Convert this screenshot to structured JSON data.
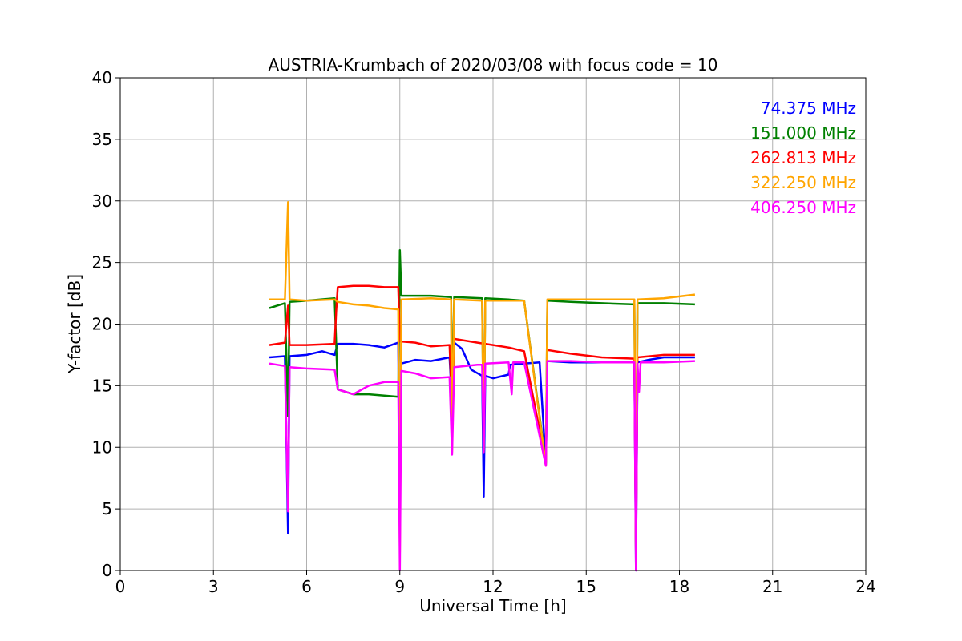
{
  "chart_data": {
    "type": "line",
    "title": "AUSTRIA-Krumbach of 2020/03/08 with focus code = 10",
    "xlabel": "Universal Time [h]",
    "ylabel": "Y-factor [dB]",
    "xlim": [
      0,
      24
    ],
    "ylim": [
      0,
      40
    ],
    "xticks": [
      0,
      3,
      6,
      9,
      12,
      15,
      18,
      21,
      24
    ],
    "yticks": [
      0,
      5,
      10,
      15,
      20,
      25,
      30,
      35,
      40
    ],
    "grid": true,
    "legend_position": "top-right",
    "series": [
      {
        "name": "74.375 MHz",
        "color": "#0000ff",
        "points": [
          [
            4.8,
            17.3
          ],
          [
            5.3,
            17.4
          ],
          [
            5.4,
            3.0
          ],
          [
            5.45,
            17.4
          ],
          [
            6.0,
            17.5
          ],
          [
            6.5,
            17.8
          ],
          [
            6.9,
            17.5
          ],
          [
            7.0,
            18.4
          ],
          [
            7.5,
            18.4
          ],
          [
            8.0,
            18.3
          ],
          [
            8.5,
            18.1
          ],
          [
            8.95,
            18.5
          ],
          [
            9.0,
            5.0
          ],
          [
            9.05,
            16.8
          ],
          [
            9.5,
            17.1
          ],
          [
            10.0,
            17.0
          ],
          [
            10.6,
            17.3
          ],
          [
            10.68,
            13.5
          ],
          [
            10.75,
            18.5
          ],
          [
            11.0,
            18.0
          ],
          [
            11.3,
            16.3
          ],
          [
            11.65,
            15.8
          ],
          [
            11.7,
            6.0
          ],
          [
            11.75,
            15.8
          ],
          [
            12.0,
            15.6
          ],
          [
            12.5,
            15.9
          ],
          [
            12.55,
            16.7
          ],
          [
            13.0,
            16.8
          ],
          [
            13.5,
            16.9
          ],
          [
            13.7,
            8.6
          ],
          [
            13.75,
            17.0
          ],
          [
            14.5,
            16.9
          ],
          [
            15.5,
            16.9
          ],
          [
            16.55,
            16.9
          ],
          [
            16.6,
            0.0
          ],
          [
            16.65,
            16.9
          ],
          [
            17.0,
            17.1
          ],
          [
            17.5,
            17.3
          ],
          [
            18.5,
            17.3
          ]
        ]
      },
      {
        "name": "151.000 MHz",
        "color": "#008000",
        "points": [
          [
            4.8,
            21.3
          ],
          [
            5.3,
            21.7
          ],
          [
            5.4,
            12.5
          ],
          [
            5.45,
            21.8
          ],
          [
            6.0,
            21.9
          ],
          [
            6.9,
            22.1
          ],
          [
            7.0,
            14.7
          ],
          [
            7.5,
            14.3
          ],
          [
            8.0,
            14.3
          ],
          [
            8.5,
            14.2
          ],
          [
            8.95,
            14.1
          ],
          [
            9.0,
            26.0
          ],
          [
            9.05,
            22.3
          ],
          [
            10.0,
            22.3
          ],
          [
            10.65,
            22.2
          ],
          [
            10.68,
            13.0
          ],
          [
            10.75,
            22.2
          ],
          [
            11.65,
            22.1
          ],
          [
            11.7,
            9.6
          ],
          [
            11.75,
            22.1
          ],
          [
            12.5,
            22.0
          ],
          [
            13.0,
            21.9
          ],
          [
            13.7,
            8.7
          ],
          [
            13.75,
            21.9
          ],
          [
            14.5,
            21.8
          ],
          [
            15.5,
            21.7
          ],
          [
            16.55,
            21.6
          ],
          [
            16.6,
            1.2
          ],
          [
            16.65,
            21.7
          ],
          [
            17.5,
            21.7
          ],
          [
            18.5,
            21.6
          ]
        ]
      },
      {
        "name": "262.813 MHz",
        "color": "#ff0000",
        "points": [
          [
            4.8,
            18.3
          ],
          [
            5.3,
            18.5
          ],
          [
            5.4,
            21.5
          ],
          [
            5.45,
            18.3
          ],
          [
            6.0,
            18.3
          ],
          [
            6.9,
            18.4
          ],
          [
            6.95,
            21.0
          ],
          [
            7.0,
            23.0
          ],
          [
            7.5,
            23.1
          ],
          [
            8.0,
            23.1
          ],
          [
            8.5,
            23.0
          ],
          [
            8.95,
            23.0
          ],
          [
            9.0,
            18.6
          ],
          [
            9.5,
            18.5
          ],
          [
            10.0,
            18.2
          ],
          [
            10.6,
            18.3
          ],
          [
            10.68,
            13.0
          ],
          [
            10.75,
            18.8
          ],
          [
            11.5,
            18.5
          ],
          [
            12.0,
            18.3
          ],
          [
            12.5,
            18.1
          ],
          [
            13.0,
            17.8
          ],
          [
            13.7,
            8.8
          ],
          [
            13.75,
            17.9
          ],
          [
            14.5,
            17.6
          ],
          [
            15.5,
            17.3
          ],
          [
            16.55,
            17.2
          ],
          [
            16.6,
            1.2
          ],
          [
            16.65,
            17.3
          ],
          [
            17.5,
            17.5
          ],
          [
            18.5,
            17.5
          ]
        ]
      },
      {
        "name": "322.250 MHz",
        "color": "#ffa500",
        "points": [
          [
            4.8,
            22.0
          ],
          [
            5.3,
            22.0
          ],
          [
            5.4,
            29.9
          ],
          [
            5.45,
            22.0
          ],
          [
            6.0,
            21.9
          ],
          [
            6.9,
            22.0
          ],
          [
            7.0,
            21.8
          ],
          [
            7.5,
            21.6
          ],
          [
            8.0,
            21.5
          ],
          [
            8.5,
            21.3
          ],
          [
            8.95,
            21.2
          ],
          [
            9.0,
            1.5
          ],
          [
            9.05,
            22.0
          ],
          [
            10.0,
            22.1
          ],
          [
            10.65,
            22.0
          ],
          [
            10.68,
            9.6
          ],
          [
            10.75,
            22.0
          ],
          [
            11.65,
            21.9
          ],
          [
            11.7,
            9.8
          ],
          [
            11.75,
            21.9
          ],
          [
            12.5,
            21.9
          ],
          [
            13.0,
            21.9
          ],
          [
            13.7,
            8.5
          ],
          [
            13.75,
            22.0
          ],
          [
            14.5,
            22.0
          ],
          [
            15.5,
            22.0
          ],
          [
            16.55,
            22.0
          ],
          [
            16.6,
            1.0
          ],
          [
            16.65,
            22.0
          ],
          [
            17.5,
            22.1
          ],
          [
            18.5,
            22.4
          ]
        ]
      },
      {
        "name": "406.250 MHz",
        "color": "#ff00ff",
        "points": [
          [
            4.8,
            16.8
          ],
          [
            5.3,
            16.6
          ],
          [
            5.4,
            4.8
          ],
          [
            5.45,
            16.5
          ],
          [
            6.0,
            16.4
          ],
          [
            6.9,
            16.3
          ],
          [
            7.0,
            14.7
          ],
          [
            7.5,
            14.3
          ],
          [
            8.0,
            15.0
          ],
          [
            8.5,
            15.3
          ],
          [
            8.95,
            15.3
          ],
          [
            9.0,
            0.0
          ],
          [
            9.05,
            16.2
          ],
          [
            9.5,
            16.0
          ],
          [
            10.0,
            15.6
          ],
          [
            10.6,
            15.7
          ],
          [
            10.68,
            9.4
          ],
          [
            10.75,
            16.5
          ],
          [
            11.5,
            16.7
          ],
          [
            11.65,
            16.7
          ],
          [
            11.7,
            9.6
          ],
          [
            11.75,
            16.8
          ],
          [
            12.5,
            16.9
          ],
          [
            12.6,
            14.3
          ],
          [
            12.65,
            16.9
          ],
          [
            13.0,
            16.9
          ],
          [
            13.7,
            8.5
          ],
          [
            13.75,
            17.0
          ],
          [
            14.5,
            17.0
          ],
          [
            15.5,
            16.9
          ],
          [
            16.55,
            16.9
          ],
          [
            16.6,
            0.0
          ],
          [
            16.65,
            16.8
          ],
          [
            16.7,
            14.5
          ],
          [
            16.75,
            16.9
          ],
          [
            17.5,
            16.9
          ],
          [
            18.5,
            17.0
          ]
        ]
      }
    ]
  }
}
